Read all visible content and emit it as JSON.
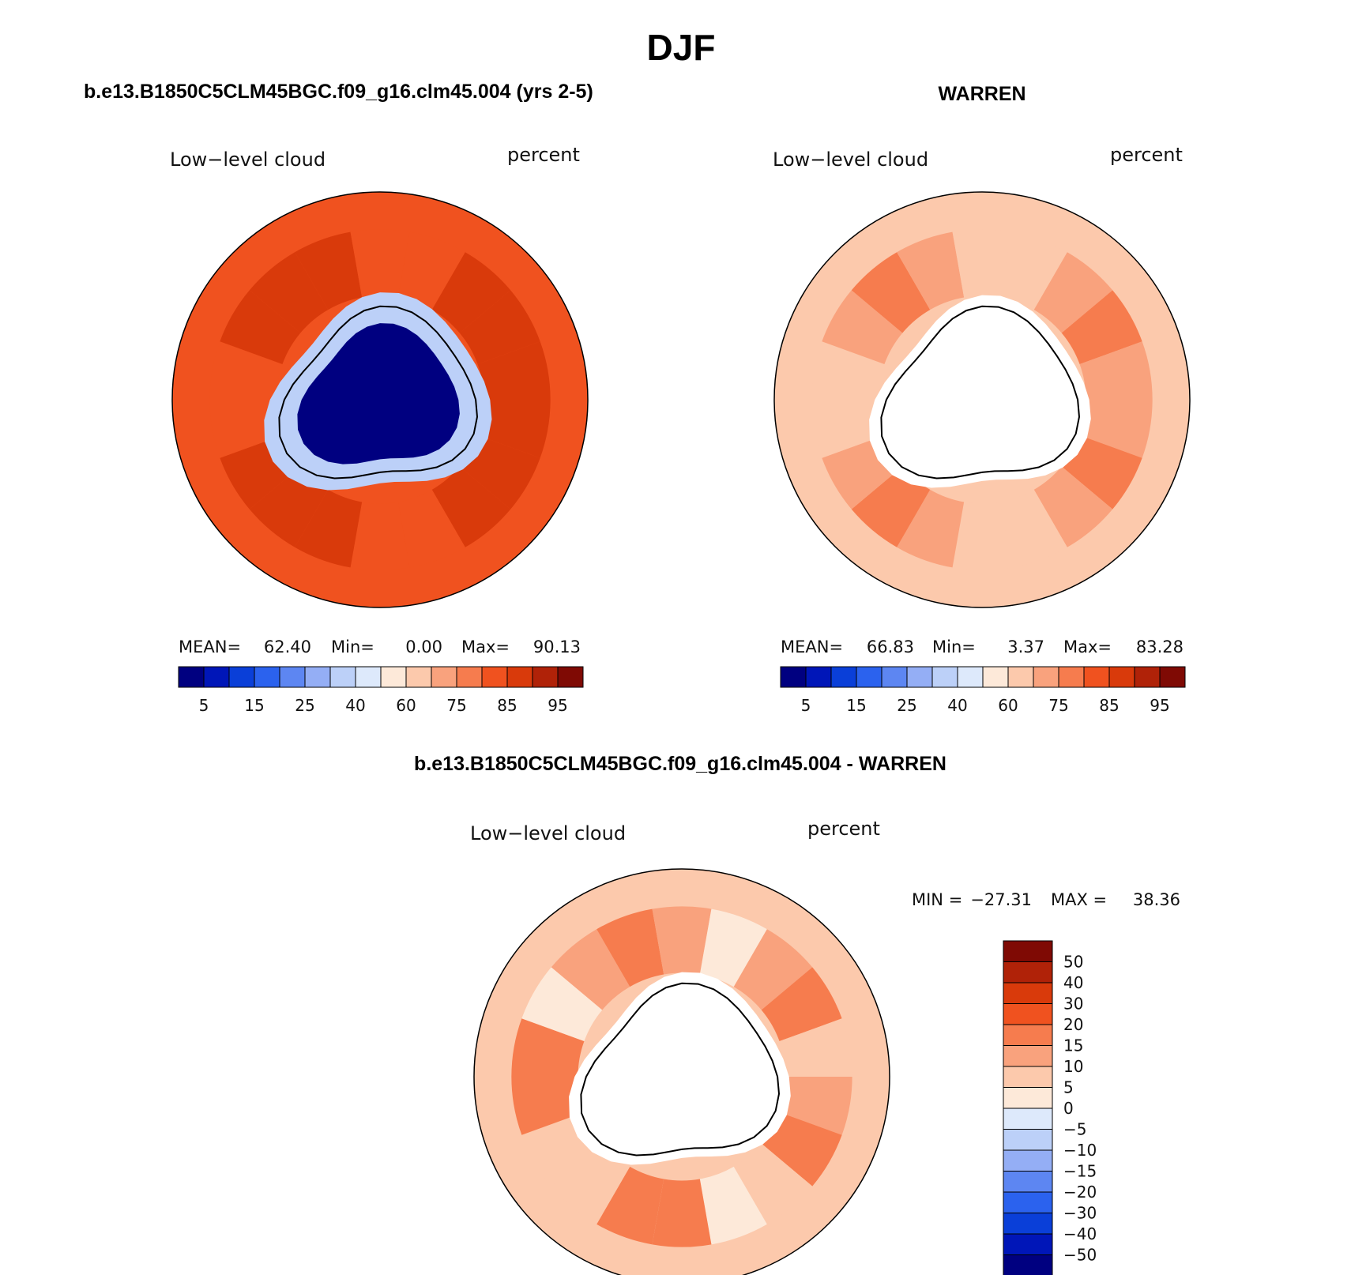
{
  "page": {
    "title": "DJF"
  },
  "chart_data": [
    {
      "type": "heatmap",
      "projection": "south-polar-stereographic",
      "title": "b.e13.B1850C5CLM45BGC.f09_g16.clm45.004 (yrs 2-5)",
      "left_label": "Low−level cloud",
      "right_label": "percent",
      "stats": {
        "mean_label": "MEAN=",
        "mean": "62.40",
        "min_label": "Min=",
        "min": "0.00",
        "max_label": "Max=",
        "max": "90.13"
      },
      "colorbar_ticks": [
        "5",
        "15",
        "25",
        "40",
        "60",
        "75",
        "85",
        "95"
      ],
      "colorbar_orientation": "horizontal",
      "field_zones": {
        "polar": 3,
        "coast": 30,
        "ocean_inner": 86,
        "ocean_outer": 80
      }
    },
    {
      "type": "heatmap",
      "projection": "south-polar-stereographic",
      "title": "WARREN",
      "left_label": "Low−level cloud",
      "right_label": "percent",
      "stats": {
        "mean_label": "MEAN=",
        "mean": "66.83",
        "min_label": "Min=",
        "min": "3.37",
        "max_label": "Max=",
        "max": "83.28"
      },
      "colorbar_ticks": [
        "5",
        "15",
        "25",
        "40",
        "60",
        "75",
        "85",
        "95"
      ],
      "colorbar_orientation": "horizontal",
      "field_zones": {
        "polar": "missing",
        "ocean_inner": 72,
        "ocean_outer": 68
      }
    },
    {
      "type": "heatmap",
      "projection": "south-polar-stereographic",
      "title": "b.e13.B1850C5CLM45BGC.f09_g16.clm45.004 - WARREN",
      "left_label": "Low−level cloud",
      "right_label": "percent",
      "stats": {
        "min_label": "MIN =",
        "min": "−27.31",
        "max_label": "MAX =",
        "max": "38.36"
      },
      "colorbar_ticks": [
        "50",
        "40",
        "30",
        "20",
        "15",
        "10",
        "5",
        "0",
        "−5",
        "−10",
        "−15",
        "−20",
        "−30",
        "−40",
        "−50"
      ],
      "colorbar_orientation": "vertical",
      "field_zones": {
        "polar": "missing",
        "ocean_inner": 12,
        "ocean_outer": 6
      }
    }
  ],
  "palette": {
    "levels": [
      "#000080",
      "#0016b8",
      "#0a3fd8",
      "#2b62ee",
      "#5d86f2",
      "#94aef5",
      "#bcd0f8",
      "#dde9fb",
      "#fde9d9",
      "#fcc9ac",
      "#f9a27d",
      "#f67c4e",
      "#f0521f",
      "#d93a0b",
      "#b02208",
      "#7f0a04"
    ],
    "diff_levels": [
      "#7f0a04",
      "#b02208",
      "#d93a0b",
      "#f0521f",
      "#f67c4e",
      "#f9a27d",
      "#fcc9ac",
      "#fde9d9",
      "#dde9fb",
      "#bcd0f8",
      "#94aef5",
      "#5d86f2",
      "#2b62ee",
      "#0a3fd8",
      "#0016b8",
      "#000080"
    ]
  }
}
